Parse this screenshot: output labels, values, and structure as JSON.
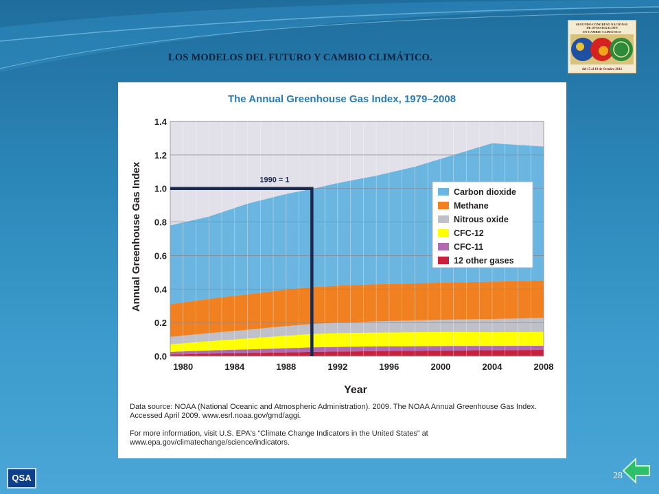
{
  "slide": {
    "title": "LOS MODELOS DEL FUTURO Y CAMBIO CLIMÁTICO.",
    "page_number": "28",
    "qsa_label": "QSA",
    "logo": {
      "line1": "SEGUNDO CONGRESO NACIONAL",
      "line2": "DE INVESTIGACIÓN",
      "line3": "EN CAMBIO CLIMÁTICO",
      "dates": "del 15 al 19 de Octubre 2012"
    },
    "source_note": "Data source: NOAA (National Oceanic and Atmospheric Administration). 2009. The NOAA Annual Greenhouse Gas Index. Accessed April 2009. www.esrl.noaa.gov/gmd/aggi.",
    "more_info": "For more information, visit U.S. EPA's “Climate Change Indicators in the United States” at www.epa.gov/climatechange/science/indicators."
  },
  "colors": {
    "plot_bg": "#e2e0e8",
    "title_blue": "#2a7ab8",
    "ref_line": "#1b2a4e"
  },
  "chart_data": {
    "type": "area",
    "stacked": true,
    "title": "The Annual Greenhouse Gas Index, 1979–2008",
    "xlabel": "Year",
    "ylabel": "Annual Greenhouse Gas Index",
    "xlim": [
      1979,
      2008
    ],
    "ylim": [
      0,
      1.4
    ],
    "xticks": [
      1980,
      1984,
      1988,
      1992,
      1996,
      2000,
      2004,
      2008
    ],
    "yticks": [
      "0.0",
      "0.2",
      "0.4",
      "0.6",
      "0.8",
      "1.0",
      "1.2",
      "1.4"
    ],
    "grid": true,
    "legend_position": "right",
    "annotation": {
      "text": "1990 = 1",
      "x": 1990,
      "y": 1.0
    },
    "x": [
      1979,
      1982,
      1985,
      1988,
      1990,
      1992,
      1995,
      1998,
      2001,
      2004,
      2008
    ],
    "series": [
      {
        "name": "12 other gases",
        "color": "#c8213e",
        "values": [
          0.01,
          0.015,
          0.018,
          0.022,
          0.025,
          0.027,
          0.03,
          0.032,
          0.034,
          0.035,
          0.037
        ]
      },
      {
        "name": "CFC-11",
        "color": "#b06ab0",
        "values": [
          0.015,
          0.019,
          0.022,
          0.025,
          0.027,
          0.028,
          0.028,
          0.027,
          0.027,
          0.026,
          0.025
        ]
      },
      {
        "name": "CFC-12",
        "color": "#ffff00",
        "values": [
          0.045,
          0.055,
          0.065,
          0.075,
          0.08,
          0.082,
          0.083,
          0.084,
          0.083,
          0.082,
          0.082
        ]
      },
      {
        "name": "Nitrous oxide",
        "color": "#c0c0c8",
        "values": [
          0.045,
          0.048,
          0.052,
          0.057,
          0.06,
          0.062,
          0.066,
          0.07,
          0.074,
          0.078,
          0.084
        ]
      },
      {
        "name": "Methane",
        "color": "#f08020",
        "values": [
          0.195,
          0.205,
          0.212,
          0.218,
          0.22,
          0.222,
          0.222,
          0.221,
          0.222,
          0.223,
          0.224
        ]
      },
      {
        "name": "Carbon dioxide",
        "color": "#6ab6e0",
        "values": [
          0.47,
          0.49,
          0.54,
          0.57,
          0.585,
          0.611,
          0.647,
          0.696,
          0.76,
          0.826,
          0.798
        ]
      }
    ]
  }
}
